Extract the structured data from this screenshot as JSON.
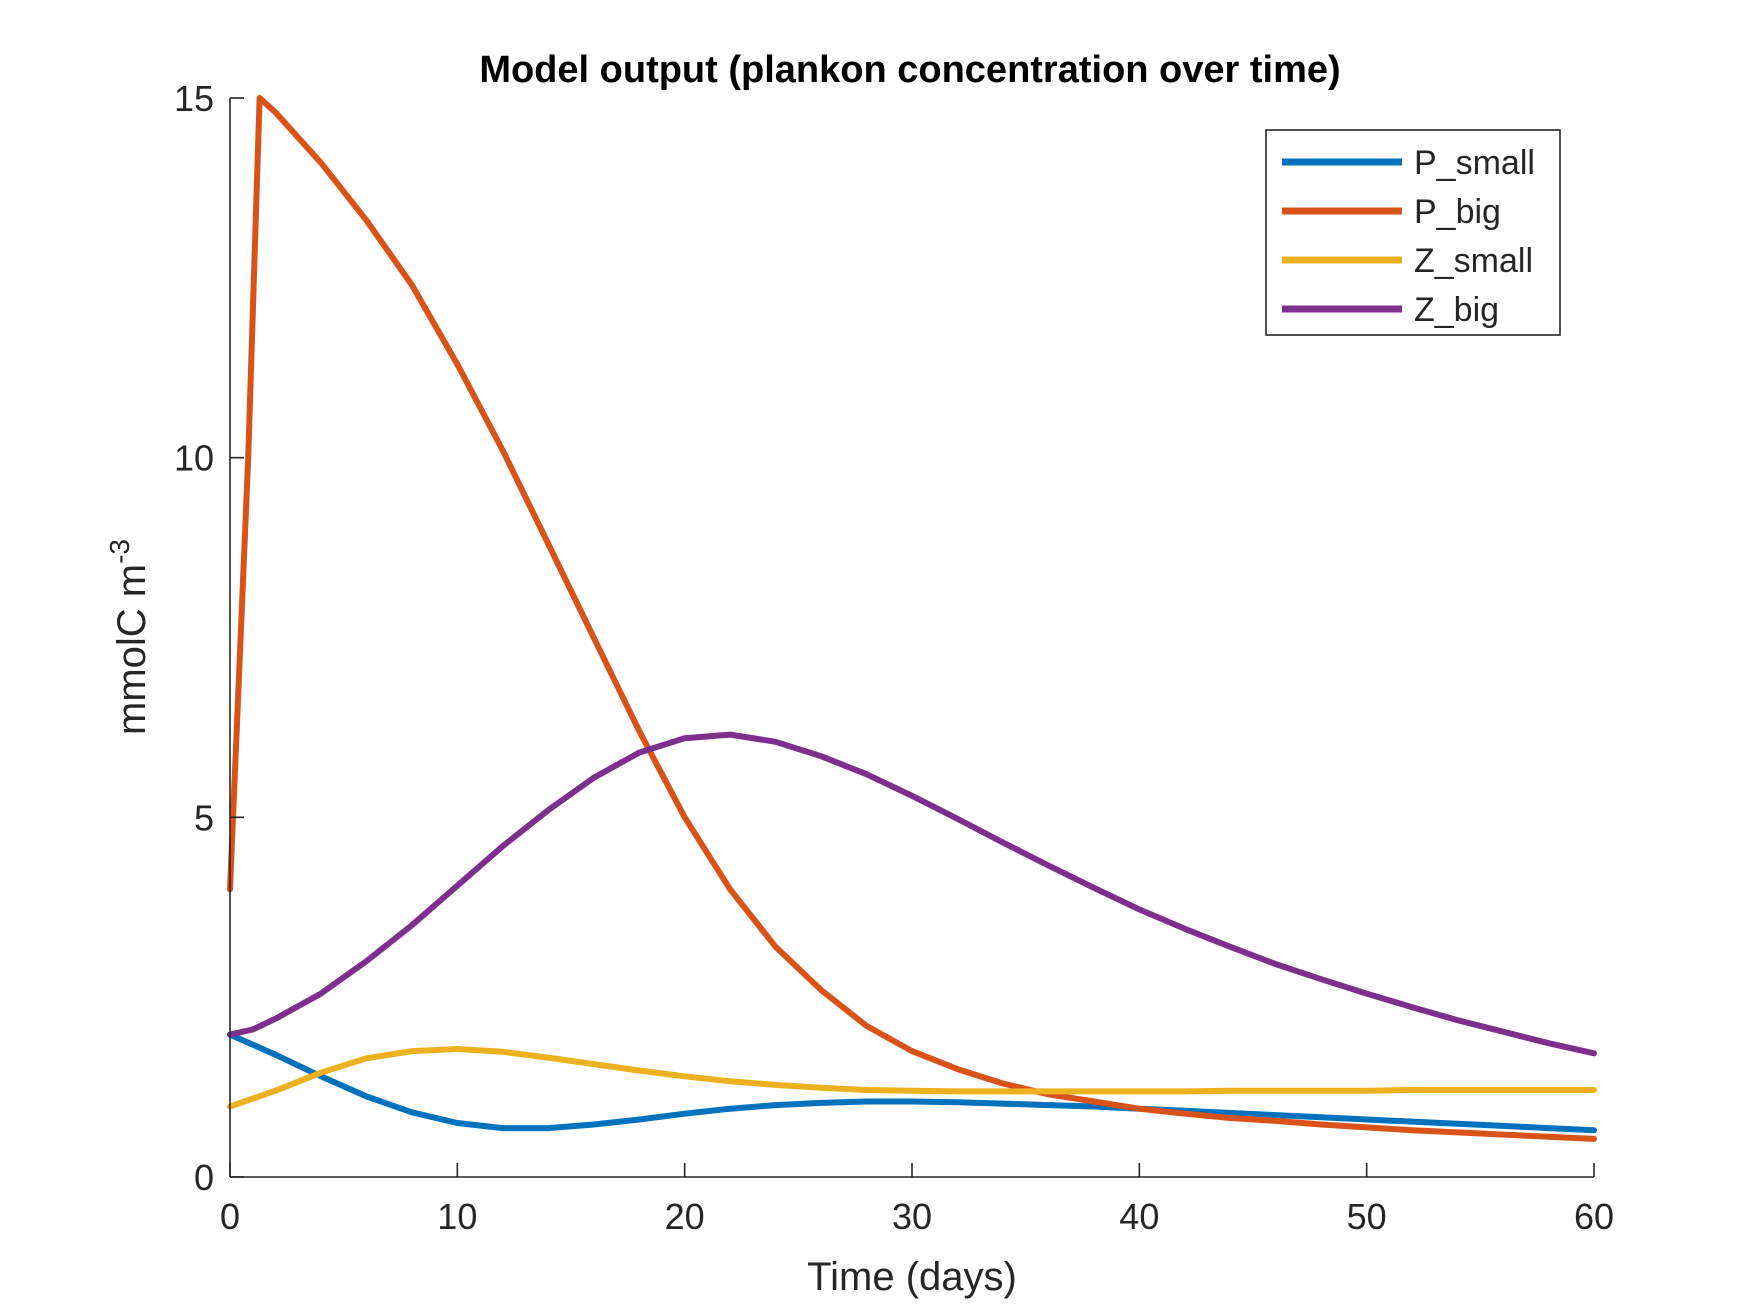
{
  "chart_data": {
    "type": "line",
    "title": "Model output (plankon concentration over time)",
    "xlabel": "Time (days)",
    "ylabel_base": "mmolC m",
    "ylabel_sup": "-3",
    "xlim": [
      0,
      60
    ],
    "ylim": [
      0,
      15
    ],
    "xticks": [
      0,
      10,
      20,
      30,
      40,
      50,
      60
    ],
    "yticks": [
      0,
      5,
      10,
      15
    ],
    "grid": false,
    "legend_position": "top-right",
    "series": [
      {
        "name": "P_small",
        "color": "#0072BD",
        "x": [
          0,
          2,
          4,
          6,
          8,
          10,
          12,
          14,
          16,
          18,
          20,
          22,
          24,
          26,
          28,
          30,
          32,
          34,
          36,
          38,
          40,
          42,
          44,
          46,
          48,
          50,
          52,
          54,
          56,
          58,
          60
        ],
        "y": [
          1.98,
          1.7,
          1.4,
          1.12,
          0.9,
          0.75,
          0.68,
          0.68,
          0.73,
          0.8,
          0.88,
          0.95,
          1.0,
          1.03,
          1.05,
          1.05,
          1.04,
          1.02,
          1.0,
          0.98,
          0.95,
          0.92,
          0.89,
          0.86,
          0.83,
          0.8,
          0.77,
          0.74,
          0.71,
          0.68,
          0.65
        ]
      },
      {
        "name": "P_big",
        "color": "#D95319",
        "x": [
          0,
          0.8,
          1.3,
          2,
          4,
          6,
          8,
          10,
          12,
          14,
          16,
          18,
          20,
          22,
          24,
          26,
          28,
          30,
          32,
          34,
          36,
          38,
          40,
          42,
          44,
          46,
          48,
          50,
          52,
          54,
          56,
          58,
          60
        ],
        "y": [
          4.0,
          10.0,
          15.0,
          14.8,
          14.1,
          13.3,
          12.4,
          11.3,
          10.1,
          8.8,
          7.5,
          6.2,
          5.0,
          4.0,
          3.2,
          2.6,
          2.1,
          1.75,
          1.5,
          1.3,
          1.15,
          1.05,
          0.95,
          0.88,
          0.82,
          0.78,
          0.73,
          0.69,
          0.65,
          0.62,
          0.59,
          0.56,
          0.53
        ]
      },
      {
        "name": "Z_small",
        "color": "#EDB120",
        "x": [
          0,
          2,
          4,
          6,
          8,
          10,
          12,
          14,
          16,
          18,
          20,
          22,
          24,
          26,
          28,
          30,
          32,
          34,
          36,
          38,
          40,
          42,
          44,
          46,
          48,
          50,
          52,
          54,
          56,
          58,
          60
        ],
        "y": [
          0.98,
          1.2,
          1.45,
          1.65,
          1.75,
          1.78,
          1.74,
          1.66,
          1.57,
          1.48,
          1.4,
          1.33,
          1.28,
          1.24,
          1.21,
          1.2,
          1.19,
          1.19,
          1.19,
          1.19,
          1.19,
          1.19,
          1.2,
          1.2,
          1.2,
          1.2,
          1.21,
          1.21,
          1.21,
          1.21,
          1.21
        ]
      },
      {
        "name": "Z_big",
        "color": "#7E2F8E",
        "x": [
          0,
          1,
          2,
          4,
          6,
          8,
          10,
          12,
          14,
          16,
          18,
          20,
          22,
          24,
          26,
          28,
          30,
          32,
          34,
          36,
          38,
          40,
          42,
          44,
          46,
          48,
          50,
          52,
          54,
          56,
          58,
          60
        ],
        "y": [
          1.98,
          2.05,
          2.2,
          2.55,
          3.0,
          3.5,
          4.05,
          4.6,
          5.1,
          5.55,
          5.9,
          6.1,
          6.15,
          6.05,
          5.85,
          5.6,
          5.3,
          4.98,
          4.65,
          4.33,
          4.02,
          3.72,
          3.45,
          3.2,
          2.96,
          2.75,
          2.55,
          2.36,
          2.18,
          2.02,
          1.86,
          1.72
        ]
      }
    ]
  }
}
